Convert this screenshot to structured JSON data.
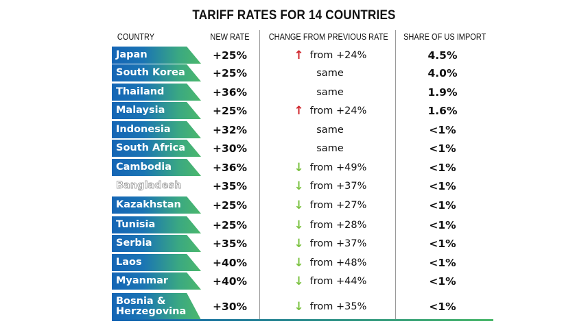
{
  "title": "TARIFF RATES FOR 14 COUNTRIES",
  "chart_data": {
    "type": "table",
    "title": "TARIFF RATES FOR 14 COUNTRIES",
    "columns": [
      "COUNTRY",
      "NEW RATE",
      "CHANGE FROM PREVIOUS RATE",
      "SHARE OF US IMPORT"
    ],
    "colors": {
      "band_start": "#1565b5",
      "band_end": "#4cb86c",
      "up_arrow": "#d0262c",
      "down_arrow": "#7cc242"
    },
    "rows": [
      {
        "country": "Japan",
        "rate": "+25%",
        "dir": "up",
        "change": "from +24%",
        "share": "4.5%"
      },
      {
        "country": "South Korea",
        "rate": "+25%",
        "dir": "same",
        "change": "same",
        "share": "4.0%"
      },
      {
        "country": "Thailand",
        "rate": "+36%",
        "dir": "same",
        "change": "same",
        "share": "1.9%"
      },
      {
        "country": "Malaysia",
        "rate": "+25%",
        "dir": "up",
        "change": "from +24%",
        "share": "1.6%"
      },
      {
        "country": "Indonesia",
        "rate": "+32%",
        "dir": "same",
        "change": "same",
        "share": "<1%"
      },
      {
        "country": "South Africa",
        "rate": "+30%",
        "dir": "same",
        "change": "same",
        "share": "<1%"
      },
      {
        "country": "Cambodia",
        "rate": "+36%",
        "dir": "down",
        "change": "from +49%",
        "share": "<1%"
      },
      {
        "country": "Bangladesh",
        "rate": "+35%",
        "dir": "down",
        "change": "from +37%",
        "share": "<1%",
        "plain": true
      },
      {
        "country": "Kazakhstan",
        "rate": "+25%",
        "dir": "down",
        "change": "from +27%",
        "share": "<1%"
      },
      {
        "country": "Tunisia",
        "rate": "+25%",
        "dir": "down",
        "change": "from +28%",
        "share": "<1%"
      },
      {
        "country": "Serbia",
        "rate": "+35%",
        "dir": "down",
        "change": "from +37%",
        "share": "<1%"
      },
      {
        "country": "Laos",
        "rate": "+40%",
        "dir": "down",
        "change": "from +48%",
        "share": "<1%"
      },
      {
        "country": "Myanmar",
        "rate": "+40%",
        "dir": "down",
        "change": "from +44%",
        "share": "<1%"
      },
      {
        "country": "Bosnia & Herzegovina",
        "rate": "+30%",
        "dir": "down",
        "change": "from +35%",
        "share": "<1%"
      }
    ]
  }
}
